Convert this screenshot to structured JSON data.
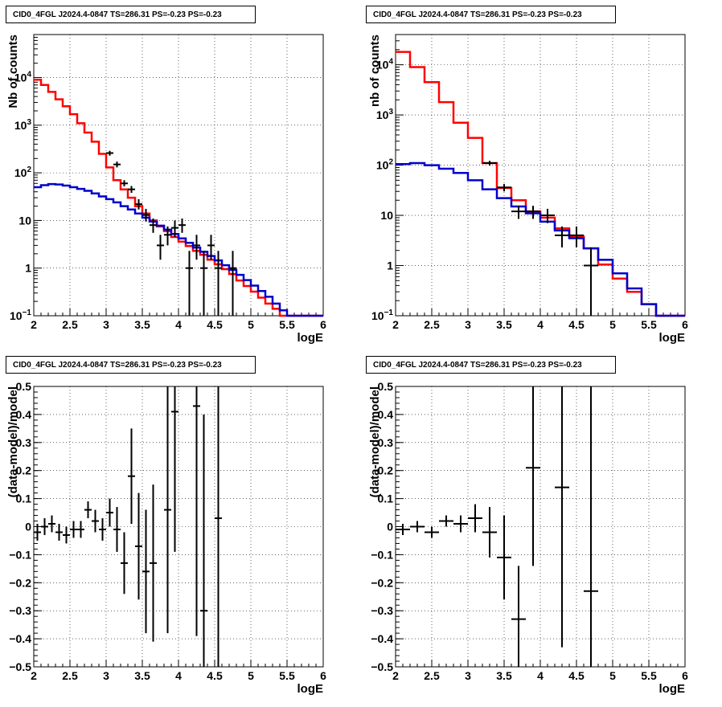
{
  "panels": [
    {
      "title": "CID0_4FGL J2024.4-0847 TS=286.31 PS=-0.23 PS=-0.23",
      "xlabel": "logE",
      "ylabel": "Nb of counts",
      "xlim": [
        2,
        6
      ],
      "log_y": true,
      "ylim": [
        0.1,
        80000
      ],
      "xticks": [
        "2",
        "2.5",
        "3",
        "3.5",
        "4",
        "4.5",
        "5",
        "5.5",
        "6"
      ],
      "yticks": [
        {
          "v": 0.1,
          "label": "10",
          "sup": "−1"
        },
        {
          "v": 1,
          "label": "1",
          "sup": ""
        },
        {
          "v": 10,
          "label": "10",
          "sup": ""
        },
        {
          "v": 100,
          "label": "10",
          "sup": "2"
        },
        {
          "v": 1000,
          "label": "10",
          "sup": "3"
        },
        {
          "v": 10000,
          "label": "10",
          "sup": "4"
        }
      ]
    },
    {
      "title": "CID0_4FGL J2024.4-0847 TS=286.31 PS=-0.23 PS=-0.23",
      "xlabel": "logE",
      "ylabel": "nb of counts",
      "xlim": [
        2,
        6
      ],
      "log_y": true,
      "ylim": [
        0.1,
        40000
      ],
      "xticks": [
        "2",
        "2.5",
        "3",
        "3.5",
        "4",
        "4.5",
        "5",
        "5.5",
        "6"
      ],
      "yticks": [
        {
          "v": 0.1,
          "label": "10",
          "sup": "−1"
        },
        {
          "v": 1,
          "label": "1",
          "sup": ""
        },
        {
          "v": 10,
          "label": "10",
          "sup": ""
        },
        {
          "v": 100,
          "label": "10",
          "sup": "2"
        },
        {
          "v": 1000,
          "label": "10",
          "sup": "3"
        },
        {
          "v": 10000,
          "label": "10",
          "sup": "4"
        }
      ]
    },
    {
      "title": "CID0_4FGL J2024.4-0847 TS=286.31 PS=-0.23 PS=-0.23",
      "xlabel": "logE",
      "ylabel": "(data-model)/model",
      "xlim": [
        2,
        6
      ],
      "log_y": false,
      "ylim": [
        -0.5,
        0.5
      ],
      "xticks": [
        "2",
        "2.5",
        "3",
        "3.5",
        "4",
        "4.5",
        "5",
        "5.5",
        "6"
      ],
      "yticks": [
        {
          "v": -0.5,
          "label": "−0.5",
          "sup": ""
        },
        {
          "v": -0.4,
          "label": "−0.4",
          "sup": ""
        },
        {
          "v": -0.3,
          "label": "−0.3",
          "sup": ""
        },
        {
          "v": -0.2,
          "label": "−0.2",
          "sup": ""
        },
        {
          "v": -0.1,
          "label": "−0.1",
          "sup": ""
        },
        {
          "v": 0,
          "label": "0",
          "sup": ""
        },
        {
          "v": 0.1,
          "label": "0.1",
          "sup": ""
        },
        {
          "v": 0.2,
          "label": "0.2",
          "sup": ""
        },
        {
          "v": 0.3,
          "label": "0.3",
          "sup": ""
        },
        {
          "v": 0.4,
          "label": "0.4",
          "sup": ""
        },
        {
          "v": 0.5,
          "label": "0.5",
          "sup": ""
        }
      ]
    },
    {
      "title": "CID0_4FGL J2024.4-0847 TS=286.31 PS=-0.23 PS=-0.23",
      "xlabel": "logE",
      "ylabel": "(data-model)/model",
      "xlim": [
        2,
        6
      ],
      "log_y": false,
      "ylim": [
        -0.5,
        0.5
      ],
      "xticks": [
        "2",
        "2.5",
        "3",
        "3.5",
        "4",
        "4.5",
        "5",
        "5.5",
        "6"
      ],
      "yticks": [
        {
          "v": -0.5,
          "label": "−0.5",
          "sup": ""
        },
        {
          "v": -0.4,
          "label": "−0.4",
          "sup": ""
        },
        {
          "v": -0.3,
          "label": "−0.3",
          "sup": ""
        },
        {
          "v": -0.2,
          "label": "−0.2",
          "sup": ""
        },
        {
          "v": -0.1,
          "label": "−0.1",
          "sup": ""
        },
        {
          "v": 0,
          "label": "0",
          "sup": ""
        },
        {
          "v": 0.1,
          "label": "0.1",
          "sup": ""
        },
        {
          "v": 0.2,
          "label": "0.2",
          "sup": ""
        },
        {
          "v": 0.3,
          "label": "0.3",
          "sup": ""
        },
        {
          "v": 0.4,
          "label": "0.4",
          "sup": ""
        },
        {
          "v": 0.5,
          "label": "0.5",
          "sup": ""
        }
      ]
    }
  ],
  "chart_data": [
    {
      "type": "line",
      "log_y": true,
      "xlim": [
        2,
        6
      ],
      "ylim": [
        0.1,
        80000
      ],
      "grid": true,
      "colors": {
        "total_model": "#ff0000",
        "component_model": "#0000cc",
        "data": "#000000"
      },
      "series": [
        {
          "style": "step",
          "color": "#ff0000",
          "bin_edges": [
            2.0,
            2.1,
            2.2,
            2.3,
            2.4,
            2.5,
            2.6,
            2.7,
            2.8,
            2.9,
            3.0,
            3.1,
            3.2,
            3.3,
            3.4,
            3.5,
            3.6,
            3.7,
            3.8,
            3.9,
            4.0,
            4.1,
            4.2,
            4.3,
            4.4,
            4.5,
            4.6,
            4.7,
            4.8,
            4.9,
            5.0,
            5.1,
            5.2,
            5.3,
            5.4,
            5.5,
            5.6,
            5.7,
            5.8,
            5.9,
            6.0
          ],
          "values": [
            9000,
            7000,
            5000,
            3500,
            2500,
            1700,
            1100,
            700,
            450,
            250,
            130,
            70,
            45,
            30,
            20,
            14,
            10,
            7.5,
            6,
            4.5,
            3.6,
            2.9,
            2.3,
            1.9,
            1.5,
            1.2,
            0.95,
            0.75,
            0.55,
            0.42,
            0.32,
            0.24,
            0.18,
            0.14,
            0.1,
            0.1,
            0.1,
            0.1,
            0.1,
            0.1
          ]
        },
        {
          "style": "step",
          "color": "#0000cc",
          "bin_edges": [
            2.0,
            2.1,
            2.2,
            2.3,
            2.4,
            2.5,
            2.6,
            2.7,
            2.8,
            2.9,
            3.0,
            3.1,
            3.2,
            3.3,
            3.4,
            3.5,
            3.6,
            3.7,
            3.8,
            3.9,
            4.0,
            4.1,
            4.2,
            4.3,
            4.4,
            4.5,
            4.6,
            4.7,
            4.8,
            4.9,
            5.0,
            5.1,
            5.2,
            5.3,
            5.4,
            5.5,
            5.6,
            5.7,
            5.8,
            5.9,
            6.0
          ],
          "values": [
            50,
            55,
            58,
            57,
            54,
            50,
            46,
            42,
            37,
            32,
            28,
            24,
            20,
            17,
            14,
            11.5,
            9.5,
            7.8,
            6.4,
            5.2,
            4.2,
            3.4,
            2.7,
            2.2,
            1.8,
            1.45,
            1.15,
            0.92,
            0.72,
            0.56,
            0.43,
            0.33,
            0.25,
            0.18,
            0.13,
            0.1,
            0.1,
            0.1,
            0.1,
            0.1
          ]
        },
        {
          "style": "errorbar",
          "color": "#000000",
          "points": [
            {
              "x": 3.05,
              "y": 260,
              "xerr": 0.05,
              "ylo": 230,
              "yhi": 290
            },
            {
              "x": 3.15,
              "y": 150,
              "xerr": 0.05,
              "ylo": 130,
              "yhi": 172
            },
            {
              "x": 3.25,
              "y": 60,
              "xerr": 0.05,
              "ylo": 52,
              "yhi": 70
            },
            {
              "x": 3.35,
              "y": 45,
              "xerr": 0.05,
              "ylo": 38,
              "yhi": 53
            },
            {
              "x": 3.45,
              "y": 22,
              "xerr": 0.05,
              "ylo": 17,
              "yhi": 28
            },
            {
              "x": 3.55,
              "y": 13,
              "xerr": 0.05,
              "ylo": 9.5,
              "yhi": 17.5
            },
            {
              "x": 3.65,
              "y": 8,
              "xerr": 0.05,
              "ylo": 5.5,
              "yhi": 11
            },
            {
              "x": 3.75,
              "y": 3,
              "xerr": 0.05,
              "ylo": 1.5,
              "yhi": 5
            },
            {
              "x": 3.85,
              "y": 5,
              "xerr": 0.05,
              "ylo": 3,
              "yhi": 7.5
            },
            {
              "x": 3.95,
              "y": 7,
              "xerr": 0.05,
              "ylo": 4.5,
              "yhi": 10
            },
            {
              "x": 4.05,
              "y": 8,
              "xerr": 0.05,
              "ylo": 5.5,
              "yhi": 11
            },
            {
              "x": 4.15,
              "y": 1,
              "xerr": 0.05,
              "ylo": 0.1,
              "yhi": 2.3
            },
            {
              "x": 4.25,
              "y": 3,
              "xerr": 0.05,
              "ylo": 1.5,
              "yhi": 5
            },
            {
              "x": 4.35,
              "y": 1,
              "xerr": 0.05,
              "ylo": 0.1,
              "yhi": 2.3
            },
            {
              "x": 4.45,
              "y": 3,
              "xerr": 0.05,
              "ylo": 1.5,
              "yhi": 5
            },
            {
              "x": 4.55,
              "y": 1,
              "xerr": 0.05,
              "ylo": 0.1,
              "yhi": 2.3
            },
            {
              "x": 4.75,
              "y": 1,
              "xerr": 0.05,
              "ylo": 0.1,
              "yhi": 2.3
            }
          ]
        }
      ]
    },
    {
      "type": "line",
      "log_y": true,
      "xlim": [
        2,
        6
      ],
      "ylim": [
        0.1,
        40000
      ],
      "grid": true,
      "colors": {
        "total_model": "#ff0000",
        "component_model": "#0000cc",
        "data": "#000000"
      },
      "series": [
        {
          "style": "step",
          "color": "#ff0000",
          "bin_edges": [
            2.0,
            2.2,
            2.4,
            2.6,
            2.8,
            3.0,
            3.2,
            3.4,
            3.6,
            3.8,
            4.0,
            4.2,
            4.4,
            4.6,
            4.8,
            5.0,
            5.2,
            5.4,
            5.6,
            5.8,
            6.0
          ],
          "values": [
            18000,
            9000,
            4500,
            1800,
            700,
            350,
            110,
            35,
            20,
            12,
            9,
            5.5,
            3.8,
            2.2,
            1.05,
            0.55,
            0.3,
            0.17,
            0.1,
            0.1
          ]
        },
        {
          "style": "step",
          "color": "#0000cc",
          "bin_edges": [
            2.0,
            2.2,
            2.4,
            2.6,
            2.8,
            3.0,
            3.2,
            3.4,
            3.6,
            3.8,
            4.0,
            4.2,
            4.4,
            4.6,
            4.8,
            5.0,
            5.2,
            5.4,
            5.6,
            5.8,
            6.0
          ],
          "values": [
            105,
            110,
            100,
            85,
            70,
            50,
            33,
            22,
            15,
            11,
            7.5,
            5,
            3.5,
            2.2,
            1.3,
            0.7,
            0.35,
            0.17,
            0.1,
            0.1
          ]
        },
        {
          "style": "errorbar",
          "color": "#000000",
          "points": [
            {
              "x": 3.3,
              "y": 110,
              "xerr": 0.1,
              "ylo": 98,
              "yhi": 122
            },
            {
              "x": 3.5,
              "y": 36,
              "xerr": 0.1,
              "ylo": 30,
              "yhi": 42
            },
            {
              "x": 3.7,
              "y": 12,
              "xerr": 0.1,
              "ylo": 8.5,
              "yhi": 15.5
            },
            {
              "x": 3.9,
              "y": 12,
              "xerr": 0.1,
              "ylo": 8.5,
              "yhi": 15.5
            },
            {
              "x": 4.1,
              "y": 10,
              "xerr": 0.1,
              "ylo": 7,
              "yhi": 13.5
            },
            {
              "x": 4.3,
              "y": 4,
              "xerr": 0.1,
              "ylo": 2.3,
              "yhi": 6
            },
            {
              "x": 4.5,
              "y": 4,
              "xerr": 0.1,
              "ylo": 2.3,
              "yhi": 6
            },
            {
              "x": 4.7,
              "y": 1,
              "xerr": 0.1,
              "ylo": 0.1,
              "yhi": 2.3
            }
          ]
        }
      ]
    },
    {
      "type": "scatter",
      "log_y": false,
      "xlim": [
        2,
        6
      ],
      "ylim": [
        -0.5,
        0.5
      ],
      "grid": true,
      "series": [
        {
          "style": "errorbar",
          "color": "#000000",
          "points": [
            {
              "x": 2.05,
              "y": -0.02,
              "xerr": 0.05,
              "yerr": 0.03
            },
            {
              "x": 2.15,
              "y": 0.0,
              "xerr": 0.05,
              "yerr": 0.03
            },
            {
              "x": 2.25,
              "y": 0.01,
              "xerr": 0.05,
              "yerr": 0.03
            },
            {
              "x": 2.35,
              "y": -0.02,
              "xerr": 0.05,
              "yerr": 0.03
            },
            {
              "x": 2.45,
              "y": -0.03,
              "xerr": 0.05,
              "yerr": 0.03
            },
            {
              "x": 2.55,
              "y": -0.01,
              "xerr": 0.05,
              "yerr": 0.03
            },
            {
              "x": 2.65,
              "y": -0.01,
              "xerr": 0.05,
              "yerr": 0.03
            },
            {
              "x": 2.75,
              "y": 0.06,
              "xerr": 0.05,
              "yerr": 0.03
            },
            {
              "x": 2.85,
              "y": 0.02,
              "xerr": 0.05,
              "yerr": 0.04
            },
            {
              "x": 2.95,
              "y": -0.01,
              "xerr": 0.05,
              "yerr": 0.04
            },
            {
              "x": 3.05,
              "y": 0.05,
              "xerr": 0.05,
              "yerr": 0.05
            },
            {
              "x": 3.15,
              "y": -0.01,
              "xerr": 0.05,
              "yerr": 0.08
            },
            {
              "x": 3.25,
              "y": -0.13,
              "xerr": 0.05,
              "yerr": 0.11
            },
            {
              "x": 3.35,
              "y": 0.18,
              "xerr": 0.05,
              "yerr": 0.17
            },
            {
              "x": 3.45,
              "y": -0.07,
              "xerr": 0.05,
              "yerr": 0.19
            },
            {
              "x": 3.55,
              "y": -0.16,
              "xerr": 0.05,
              "yerr": 0.22
            },
            {
              "x": 3.65,
              "y": -0.13,
              "xerr": 0.05,
              "yerr": 0.28
            },
            {
              "x": 3.85,
              "y": 0.06,
              "xerr": 0.05,
              "yerr": 0.44
            },
            {
              "x": 3.95,
              "y": 0.41,
              "xerr": 0.05,
              "yerr": 0.5
            },
            {
              "x": 4.25,
              "y": 0.43,
              "xerr": 0.05,
              "yerr": 0.82
            },
            {
              "x": 4.35,
              "y": -0.3,
              "xerr": 0.05,
              "yerr": 0.7
            },
            {
              "x": 4.55,
              "y": 0.03,
              "xerr": 0.05,
              "yerr": 1.0
            }
          ]
        }
      ]
    },
    {
      "type": "scatter",
      "log_y": false,
      "xlim": [
        2,
        6
      ],
      "ylim": [
        -0.5,
        0.5
      ],
      "grid": true,
      "series": [
        {
          "style": "errorbar",
          "color": "#000000",
          "points": [
            {
              "x": 2.1,
              "y": -0.01,
              "xerr": 0.1,
              "yerr": 0.02
            },
            {
              "x": 2.3,
              "y": 0.0,
              "xerr": 0.1,
              "yerr": 0.02
            },
            {
              "x": 2.5,
              "y": -0.02,
              "xerr": 0.1,
              "yerr": 0.02
            },
            {
              "x": 2.7,
              "y": 0.02,
              "xerr": 0.1,
              "yerr": 0.02
            },
            {
              "x": 2.9,
              "y": 0.01,
              "xerr": 0.1,
              "yerr": 0.03
            },
            {
              "x": 3.1,
              "y": 0.03,
              "xerr": 0.1,
              "yerr": 0.05
            },
            {
              "x": 3.3,
              "y": -0.02,
              "xerr": 0.1,
              "yerr": 0.09
            },
            {
              "x": 3.5,
              "y": -0.11,
              "xerr": 0.1,
              "yerr": 0.15
            },
            {
              "x": 3.7,
              "y": -0.33,
              "xerr": 0.1,
              "yerr": 0.19
            },
            {
              "x": 3.9,
              "y": 0.21,
              "xerr": 0.1,
              "yerr": 0.35
            },
            {
              "x": 4.3,
              "y": 0.14,
              "xerr": 0.1,
              "yerr": 0.57
            },
            {
              "x": 4.7,
              "y": -0.23,
              "xerr": 0.1,
              "yerr": 0.8
            }
          ]
        }
      ]
    }
  ]
}
